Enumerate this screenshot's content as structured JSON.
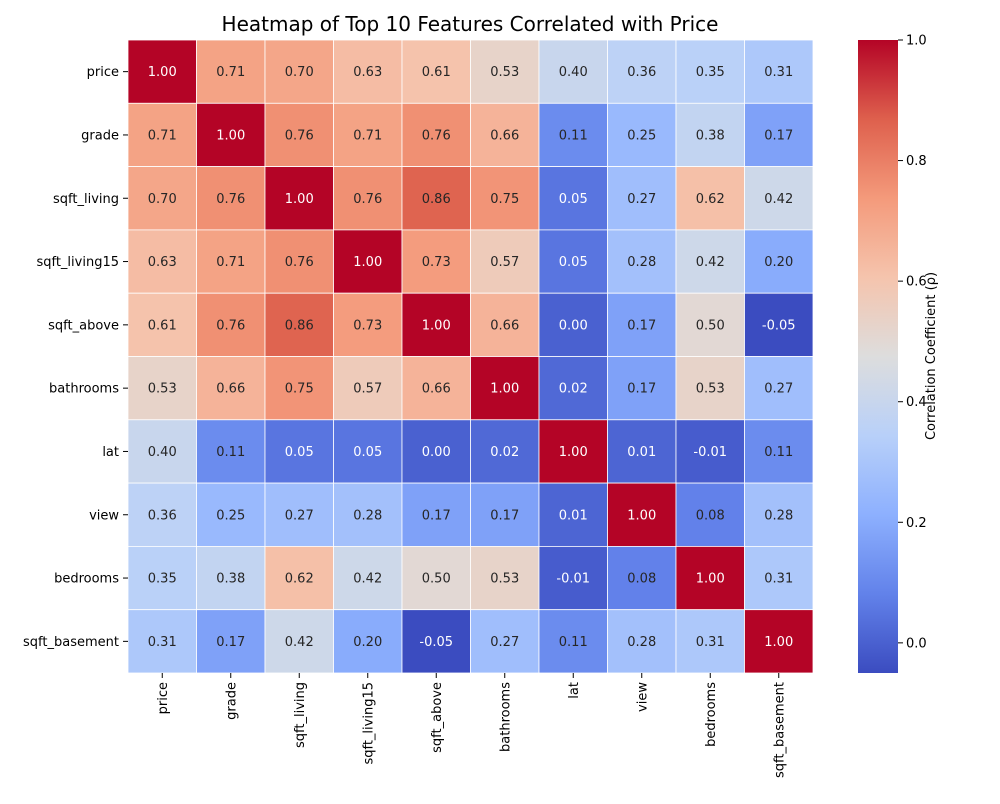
{
  "chart_data": {
    "type": "heatmap",
    "title": "Heatmap of Top 10 Features Correlated with Price",
    "colormap": "coolwarm",
    "rows": [
      "price",
      "grade",
      "sqft_living",
      "sqft_living15",
      "sqft_above",
      "bathrooms",
      "lat",
      "view",
      "bedrooms",
      "sqft_basement"
    ],
    "columns": [
      "price",
      "grade",
      "sqft_living",
      "sqft_living15",
      "sqft_above",
      "bathrooms",
      "lat",
      "view",
      "bedrooms",
      "sqft_basement"
    ],
    "values": [
      [
        1.0,
        0.71,
        0.7,
        0.63,
        0.61,
        0.53,
        0.4,
        0.36,
        0.35,
        0.31
      ],
      [
        0.71,
        1.0,
        0.76,
        0.71,
        0.76,
        0.66,
        0.11,
        0.25,
        0.38,
        0.17
      ],
      [
        0.7,
        0.76,
        1.0,
        0.76,
        0.86,
        0.75,
        0.05,
        0.27,
        0.62,
        0.42
      ],
      [
        0.63,
        0.71,
        0.76,
        1.0,
        0.73,
        0.57,
        0.05,
        0.28,
        0.42,
        0.2
      ],
      [
        0.61,
        0.76,
        0.86,
        0.73,
        1.0,
        0.66,
        -0.0,
        0.17,
        0.5,
        -0.05
      ],
      [
        0.53,
        0.66,
        0.75,
        0.57,
        0.66,
        1.0,
        0.02,
        0.17,
        0.53,
        0.27
      ],
      [
        0.4,
        0.11,
        0.05,
        0.05,
        -0.0,
        0.02,
        1.0,
        0.01,
        -0.01,
        0.11
      ],
      [
        0.36,
        0.25,
        0.27,
        0.28,
        0.17,
        0.17,
        0.01,
        1.0,
        0.08,
        0.28
      ],
      [
        0.35,
        0.38,
        0.62,
        0.42,
        0.5,
        0.53,
        -0.01,
        0.08,
        1.0,
        0.31
      ],
      [
        0.31,
        0.17,
        0.42,
        0.2,
        -0.05,
        0.27,
        0.11,
        0.28,
        0.31,
        1.0
      ]
    ],
    "value_format": "2 decimals",
    "colorbar": {
      "label": "Correlation Coefficient (ρ)",
      "range": [
        -0.05,
        1.0
      ],
      "ticks": [
        0.0,
        0.2,
        0.4,
        0.6,
        0.8,
        1.0
      ],
      "tick_labels": [
        "0.0",
        "0.2",
        "0.4",
        "0.6",
        "0.8",
        "1.0"
      ],
      "position": "right"
    },
    "grid": false
  }
}
